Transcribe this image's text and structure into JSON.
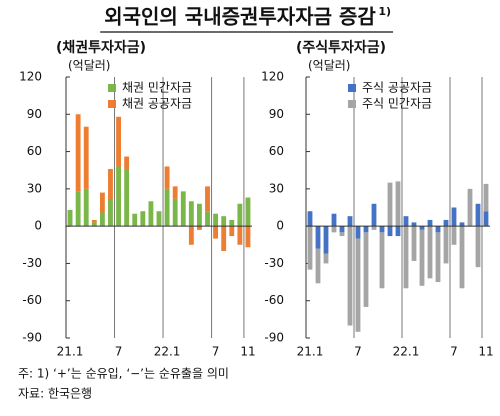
{
  "title": "외국인의 국내증권투자자금 증감",
  "title_note": "1)",
  "chart_data": [
    {
      "type": "bar",
      "stacked": true,
      "subtitle": "(채권투자자금)",
      "y_unit": "(억달러)",
      "categories": [
        "21.1",
        null,
        null,
        null,
        null,
        null,
        "7",
        null,
        null,
        null,
        null,
        null,
        "22.1",
        null,
        null,
        null,
        null,
        null,
        "7",
        null,
        null,
        null,
        "11"
      ],
      "ylim": [
        -90,
        120
      ],
      "yticks": [
        -90,
        -60,
        -30,
        0,
        30,
        60,
        90,
        120
      ],
      "series": [
        {
          "name": "채권 민간자금",
          "color": "#7ab648",
          "values": [
            13,
            28,
            30,
            3,
            11,
            21,
            48,
            46,
            10,
            12,
            20,
            12,
            30,
            22,
            28,
            20,
            18,
            12,
            10,
            8,
            5,
            18,
            23
          ]
        },
        {
          "name": "채권 공공자금",
          "color": "#ed7d31",
          "values": [
            0,
            62,
            50,
            2,
            16,
            25,
            40,
            10,
            0,
            0,
            0,
            0,
            18,
            10,
            0,
            -15,
            -3,
            20,
            -10,
            -20,
            -8,
            -15,
            -17
          ]
        }
      ]
    },
    {
      "type": "bar",
      "stacked": true,
      "subtitle": "(주식투자자금)",
      "y_unit": "(억달러)",
      "categories": [
        "21.1",
        null,
        null,
        null,
        null,
        null,
        "7",
        null,
        null,
        null,
        null,
        null,
        "22.1",
        null,
        null,
        null,
        null,
        null,
        "7",
        null,
        null,
        null,
        "11"
      ],
      "ylim": [
        -90,
        120
      ],
      "yticks": [
        -90,
        -60,
        -30,
        0,
        30,
        60,
        90,
        120
      ],
      "series": [
        {
          "name": "주식 공공자금",
          "color": "#4472c4",
          "values": [
            12,
            -18,
            -22,
            10,
            -5,
            8,
            -10,
            -5,
            18,
            -5,
            -8,
            -8,
            8,
            3,
            -3,
            5,
            -5,
            5,
            15,
            3,
            0,
            18,
            12
          ]
        },
        {
          "name": "주식 민간자금",
          "color": "#a5a5a5",
          "values": [
            -35,
            -28,
            -8,
            -5,
            -3,
            -80,
            -75,
            -60,
            -3,
            -45,
            35,
            36,
            -50,
            -28,
            -45,
            -42,
            -40,
            -30,
            -15,
            -50,
            30,
            -33,
            22
          ]
        }
      ]
    }
  ],
  "notes": [
    "주: 1) ‘+’는 순유입, ‘−’는 순유출을 의미",
    "자료: 한국은행"
  ]
}
